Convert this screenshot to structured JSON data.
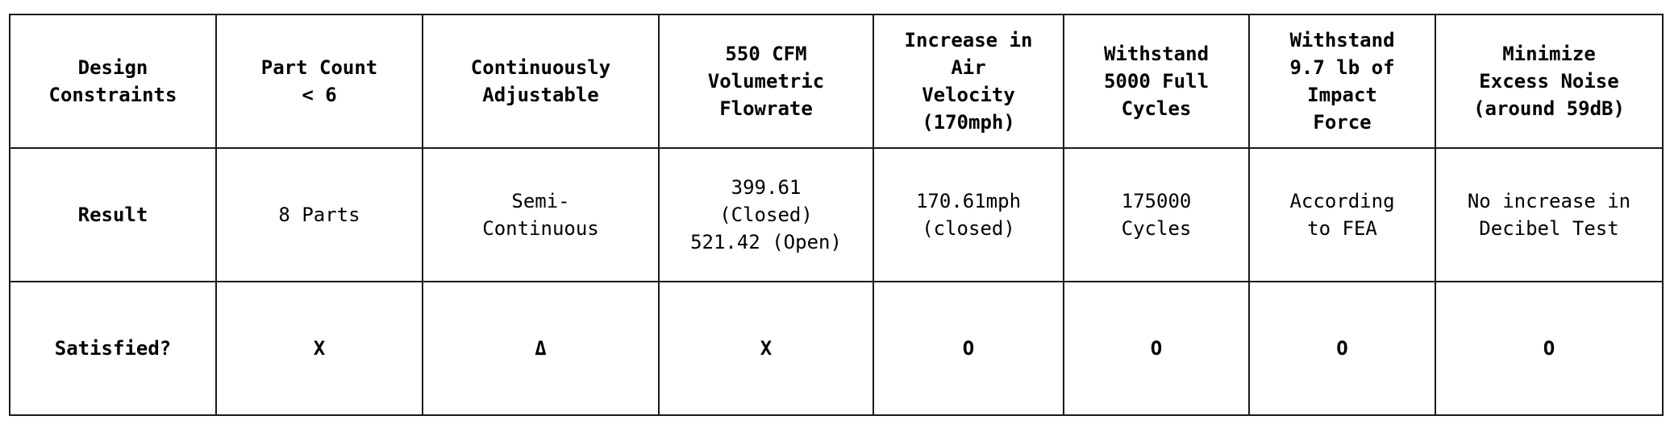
{
  "table": {
    "header": {
      "label": "Design\nConstraints",
      "columns": [
        "Part Count\n< 6",
        "Continuously\nAdjustable",
        "550 CFM\nVolumetric\nFlowrate",
        "Increase in\nAir\nVelocity\n(170mph)",
        "Withstand\n5000 Full\nCycles",
        "Withstand\n9.7 lb of\nImpact\nForce",
        "Minimize\nExcess Noise\n(around 59dB)"
      ]
    },
    "result": {
      "label": "Result",
      "values": [
        "8 Parts",
        "Semi-\nContinuous",
        "399.61\n(Closed)\n521.42 (Open)",
        "170.61mph\n(closed)",
        "175000\nCycles",
        "According\nto FEA",
        "No increase in\nDecibel Test"
      ]
    },
    "satisfied": {
      "label": "Satisfied?",
      "values": [
        "X",
        "Δ",
        "X",
        "O",
        "O",
        "O",
        "O"
      ]
    }
  }
}
